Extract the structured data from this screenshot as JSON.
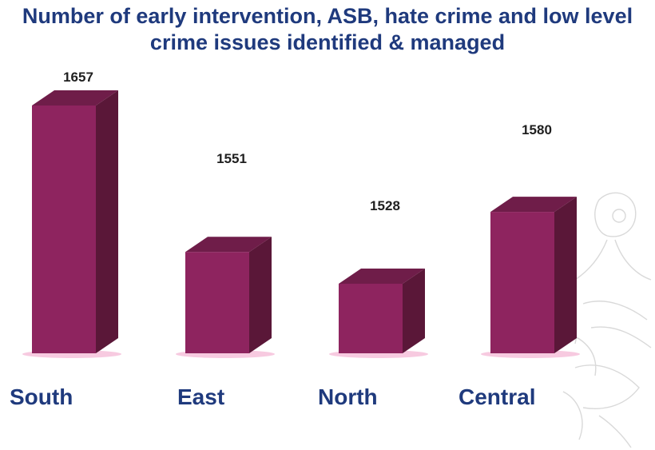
{
  "chart_data": {
    "type": "bar",
    "title": "Number of early intervention, ASB, hate crime and low level crime issues identified & managed",
    "categories": [
      "South",
      "East",
      "North",
      "Central"
    ],
    "values": [
      1657,
      1551,
      1528,
      1580
    ],
    "xlabel": "",
    "ylabel": "",
    "grid": false,
    "legend": "none",
    "colors": {
      "bar_front": "#8e245f",
      "bar_side": "#5a1738",
      "bar_top": "#6f1d49",
      "label": "#1f1f1f",
      "category_label": "#1f3a7d",
      "title": "#1f3a7d",
      "shadow": "#f4b8d6"
    }
  }
}
